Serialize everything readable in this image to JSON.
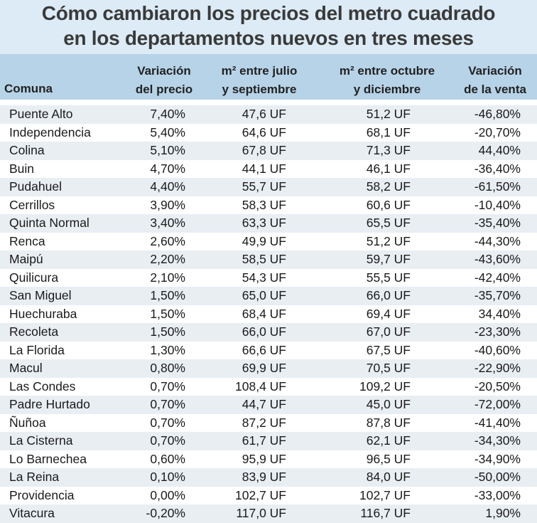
{
  "title": {
    "line1": "Cómo cambiaron los precios del metro cuadrado",
    "line2": "en los departamentos nuevos en tres meses"
  },
  "colors": {
    "title_background": "#dcebf5",
    "header_background": "#b7d3e8",
    "row_shade": "#e9eef3"
  },
  "chart_data": {
    "type": "table",
    "title": "Cómo cambiaron los precios del metro cuadrado en los departamentos nuevos en tres meses",
    "columns": [
      {
        "key": "comuna",
        "line1": "",
        "line2": "Comuna"
      },
      {
        "key": "var_precio",
        "line1": "Variación",
        "line2": "del precio"
      },
      {
        "key": "m2_jul_sep",
        "line1": "m² entre julio",
        "line2": "y septiembre"
      },
      {
        "key": "m2_oct_dic",
        "line1": "m² entre octubre",
        "line2": "y diciembre"
      },
      {
        "key": "var_venta",
        "line1": "Variación",
        "line2": "de la venta"
      }
    ],
    "rows": [
      [
        "Puente Alto",
        "7,40%",
        "47,6 UF",
        "51,2 UF",
        "-46,80%"
      ],
      [
        "Independencia",
        "5,40%",
        "64,6 UF",
        "68,1 UF",
        "-20,70%"
      ],
      [
        "Colina",
        "5,10%",
        "67,8 UF",
        "71,3 UF",
        "44,40%"
      ],
      [
        "Buin",
        "4,70%",
        "44,1 UF",
        "46,1 UF",
        "-36,40%"
      ],
      [
        "Pudahuel",
        "4,40%",
        "55,7 UF",
        "58,2 UF",
        "-61,50%"
      ],
      [
        "Cerrillos",
        "3,90%",
        "58,3 UF",
        "60,6 UF",
        "-10,40%"
      ],
      [
        "Quinta Normal",
        "3,40%",
        "63,3 UF",
        "65,5 UF",
        "-35,40%"
      ],
      [
        "Renca",
        "2,60%",
        "49,9 UF",
        "51,2 UF",
        "-44,30%"
      ],
      [
        "Maipú",
        "2,20%",
        "58,5 UF",
        "59,7 UF",
        "-43,60%"
      ],
      [
        "Quilicura",
        "2,10%",
        "54,3 UF",
        "55,5 UF",
        "-42,40%"
      ],
      [
        "San Miguel",
        "1,50%",
        "65,0 UF",
        "66,0 UF",
        "-35,70%"
      ],
      [
        "Huechuraba",
        "1,50%",
        "68,4 UF",
        "69,4 UF",
        "34,40%"
      ],
      [
        "Recoleta",
        "1,50%",
        "66,0 UF",
        "67,0 UF",
        "-23,30%"
      ],
      [
        "La Florida",
        "1,30%",
        "66,6 UF",
        "67,5 UF",
        "-40,60%"
      ],
      [
        "Macul",
        "0,80%",
        "69,9 UF",
        "70,5 UF",
        "-22,90%"
      ],
      [
        "Las Condes",
        "0,70%",
        "108,4 UF",
        "109,2 UF",
        "-20,50%"
      ],
      [
        "Padre Hurtado",
        "0,70%",
        "44,7 UF",
        "45,0 UF",
        "-72,00%"
      ],
      [
        "Ñuñoa",
        "0,70%",
        "87,2 UF",
        "87,8 UF",
        "-41,40%"
      ],
      [
        "La Cisterna",
        "0,70%",
        "61,7 UF",
        "62,1 UF",
        "-34,30%"
      ],
      [
        "Lo Barnechea",
        "0,60%",
        "95,9 UF",
        "96,5 UF",
        "-34,90%"
      ],
      [
        "La Reina",
        "0,10%",
        "83,9 UF",
        "84,0 UF",
        "-50,00%"
      ],
      [
        "Providencia",
        "0,00%",
        "102,7 UF",
        "102,7 UF",
        "-33,00%"
      ],
      [
        "Vitacura",
        "-0,20%",
        "117,0 UF",
        "116,7 UF",
        "1,90%"
      ]
    ]
  }
}
